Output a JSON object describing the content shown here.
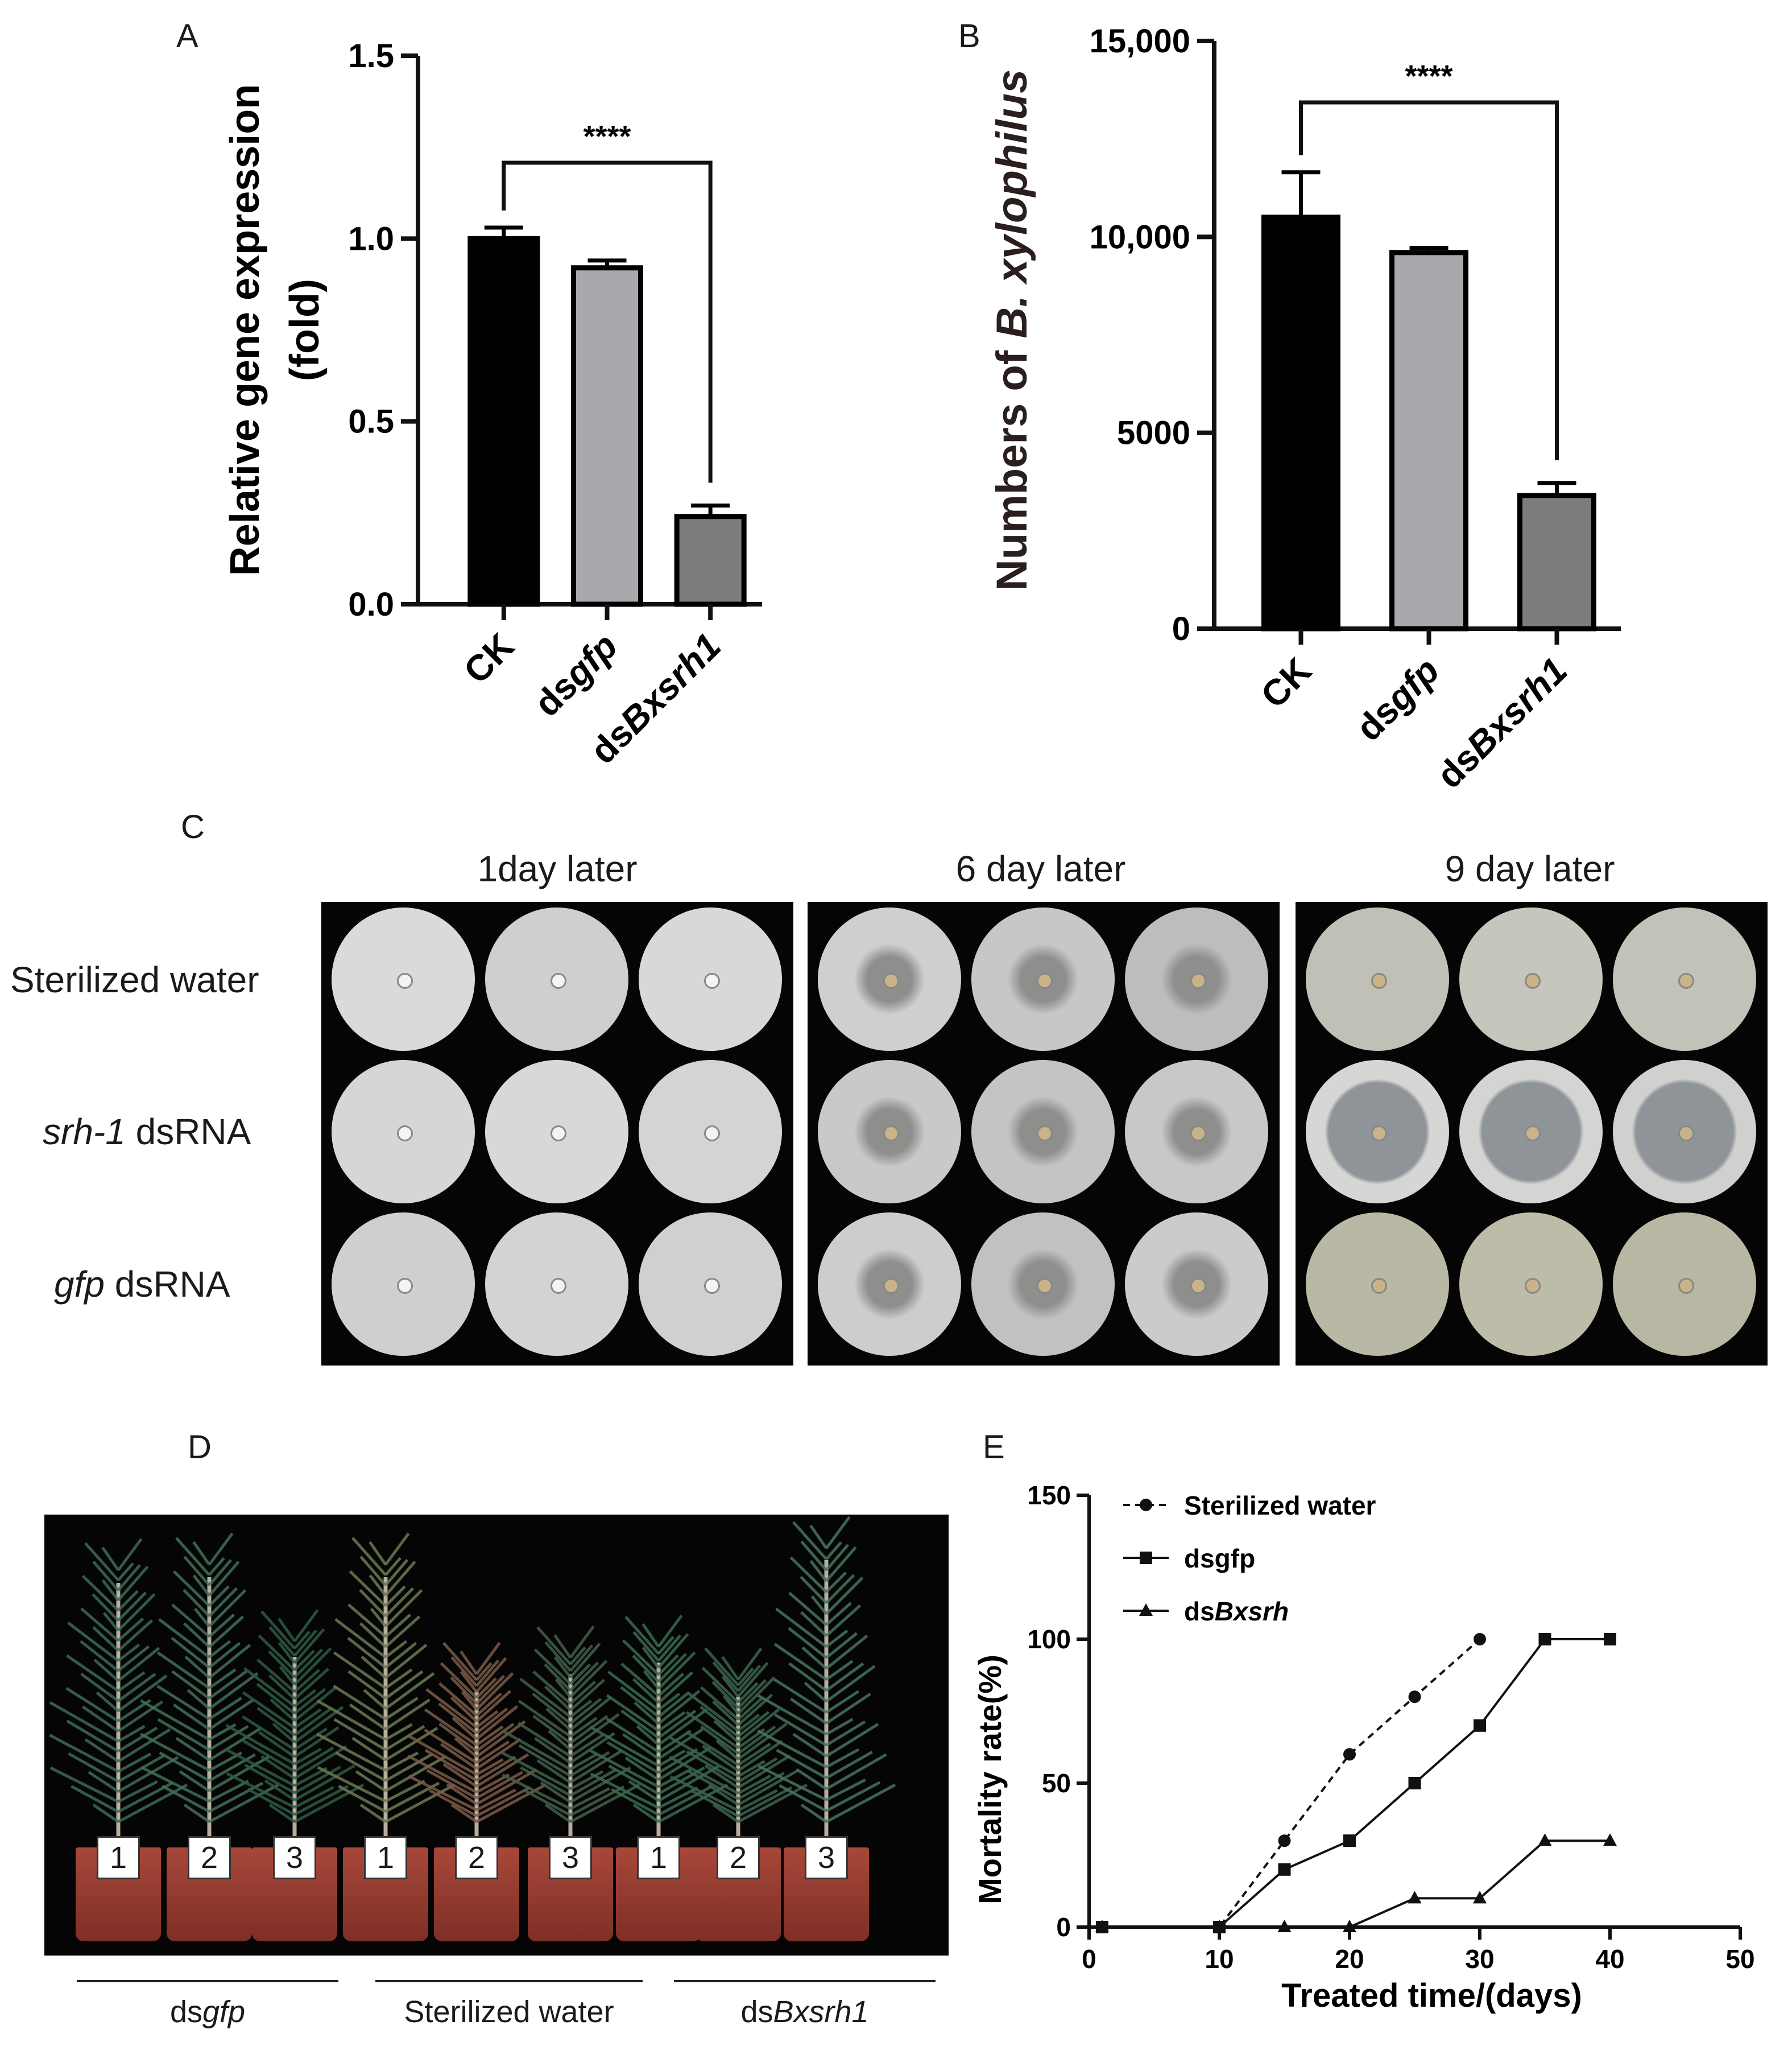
{
  "panels": {
    "a": "A",
    "b": "B",
    "c": "C",
    "d": "D",
    "e": "E"
  },
  "panel_c": {
    "columns": [
      "1day later",
      "6 day later",
      "9 day later"
    ],
    "rows": [
      {
        "italic": "",
        "text": "Sterilized water"
      },
      {
        "italic": "srh-1",
        "text": " dsRNA"
      },
      {
        "italic": "gfp",
        "text": " dsRNA"
      }
    ]
  },
  "panel_d": {
    "pot_tags": [
      "1",
      "2",
      "3",
      "1",
      "2",
      "3",
      "1",
      "2",
      "3"
    ],
    "groups": [
      {
        "prefix": "ds",
        "italic": "gfp"
      },
      {
        "prefix": "Sterilized water",
        "italic": ""
      },
      {
        "prefix": "ds",
        "italic": "Bxsrh1"
      }
    ]
  },
  "chart_data": [
    {
      "type": "bar",
      "panel": "A",
      "ylabel_lines": [
        "Relative gene expression",
        "(fold)"
      ],
      "categories": [
        {
          "prefix": "CK",
          "italic": ""
        },
        {
          "prefix": "ds",
          "italic": "gfp"
        },
        {
          "prefix": "ds",
          "italic": "Bxsrh1"
        }
      ],
      "values": [
        1.0,
        0.92,
        0.24
      ],
      "errors": [
        0.03,
        0.02,
        0.03
      ],
      "colors": [
        "#000000",
        "#a8a8ad",
        "#7c7c7c"
      ],
      "ylim": [
        0,
        1.5
      ],
      "yticks": [
        "0.0",
        "0.5",
        "1.0",
        "1.5"
      ],
      "significance": {
        "from": 0,
        "to": 2,
        "label": "****"
      }
    },
    {
      "type": "bar",
      "panel": "B",
      "ylabel_parts": {
        "prefix": "Numbers of ",
        "italic": "B. xylophilus"
      },
      "categories": [
        {
          "prefix": "CK",
          "italic": ""
        },
        {
          "prefix": "ds",
          "italic": "gfp"
        },
        {
          "prefix": "ds",
          "italic": "Bxsrh1"
        }
      ],
      "values": [
        10500,
        9600,
        3400
      ],
      "errors": [
        1150,
        120,
        320
      ],
      "colors": [
        "#000000",
        "#a8a8ad",
        "#7c7c7c"
      ],
      "ylim": [
        0,
        15000
      ],
      "yticks": [
        "0",
        "5000",
        "10,000",
        "15,000"
      ],
      "significance": {
        "from": 0,
        "to": 2,
        "label": "****"
      }
    },
    {
      "type": "line",
      "panel": "E",
      "xlabel": "Treated time/(days)",
      "ylabel": "Mortality rate(%)",
      "xlim": [
        0,
        50
      ],
      "ylim": [
        0,
        150
      ],
      "xticks": [
        "0",
        "10",
        "20",
        "30",
        "40",
        "50"
      ],
      "yticks": [
        "0",
        "50",
        "100",
        "150"
      ],
      "legend_position": "top-left",
      "series": [
        {
          "name_prefix": "Sterilized water",
          "name_italic": "",
          "marker": "circle",
          "dashed": true,
          "x": [
            1,
            10,
            15,
            20,
            25,
            30
          ],
          "y": [
            0,
            0,
            30,
            60,
            80,
            100
          ]
        },
        {
          "name_prefix": "dsgfp",
          "name_italic": "",
          "marker": "square",
          "dashed": false,
          "x": [
            1,
            10,
            15,
            20,
            25,
            30,
            35,
            40
          ],
          "y": [
            0,
            0,
            20,
            30,
            50,
            70,
            100,
            100
          ]
        },
        {
          "name_prefix": "ds",
          "name_italic": "Bxsrh",
          "marker": "triangle",
          "dashed": false,
          "x": [
            1,
            10,
            15,
            20,
            25,
            30,
            35,
            40
          ],
          "y": [
            0,
            0,
            0,
            0,
            10,
            10,
            30,
            30
          ]
        }
      ]
    }
  ]
}
